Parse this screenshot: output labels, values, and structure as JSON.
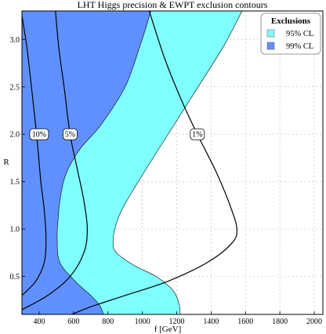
{
  "chart_data": {
    "type": "area",
    "title": "LHT Higgs precision & EWPT exclusion contours",
    "xlabel": "f [GeV]",
    "ylabel": "R",
    "xlim": [
      300,
      2050
    ],
    "ylim": [
      0.1,
      3.3
    ],
    "xticks": [
      400,
      600,
      800,
      1000,
      1200,
      1400,
      1600,
      1800,
      2000
    ],
    "yticks": [
      0.5,
      1.0,
      1.5,
      2.0,
      2.5,
      3.0
    ],
    "xtick_labels": [
      "400",
      "600",
      "800",
      "1000",
      "1200",
      "1400",
      "1600",
      "1800",
      "2000"
    ],
    "ytick_labels": [
      "0.5",
      "1.0",
      "1.5",
      "2.0",
      "2.5",
      "3.0"
    ],
    "grid": true,
    "legend": {
      "title": "Exclusions",
      "placement": "top-right",
      "entries": [
        {
          "label": "95% CL",
          "color": "#80ffff"
        },
        {
          "label": "99% CL",
          "color": "#6090ff"
        }
      ]
    },
    "regions": [
      {
        "name": "95% CL",
        "color": "#80ffff",
        "boundary": [
          [
            1220,
            0.1
          ],
          [
            1215,
            0.2
          ],
          [
            1180,
            0.35
          ],
          [
            1080,
            0.5
          ],
          [
            950,
            0.62
          ],
          [
            850,
            0.75
          ],
          [
            830,
            0.85
          ],
          [
            840,
            1.0
          ],
          [
            880,
            1.2
          ],
          [
            960,
            1.45
          ],
          [
            1080,
            1.8
          ],
          [
            1220,
            2.2
          ],
          [
            1360,
            2.6
          ],
          [
            1480,
            2.95
          ],
          [
            1580,
            3.3
          ]
        ]
      },
      {
        "name": "99% CL",
        "color": "#6090ff",
        "boundary": [
          [
            775,
            0.1
          ],
          [
            750,
            0.2
          ],
          [
            700,
            0.3
          ],
          [
            610,
            0.45
          ],
          [
            520,
            0.65
          ],
          [
            505,
            0.9
          ],
          [
            510,
            1.1
          ],
          [
            525,
            1.35
          ],
          [
            560,
            1.6
          ],
          [
            640,
            1.85
          ],
          [
            760,
            2.1
          ],
          [
            900,
            2.5
          ],
          [
            990,
            2.95
          ],
          [
            1050,
            3.3
          ]
        ]
      }
    ],
    "contours": [
      {
        "label": "10%",
        "label_at": [
          400,
          2.0
        ],
        "points": [
          [
            300,
            0.3
          ],
          [
            380,
            0.45
          ],
          [
            430,
            0.65
          ],
          [
            440,
            0.9
          ],
          [
            430,
            1.2
          ],
          [
            410,
            1.5
          ],
          [
            385,
            2.0
          ],
          [
            355,
            2.5
          ],
          [
            330,
            2.9
          ],
          [
            300,
            3.25
          ]
        ]
      },
      {
        "label": "5%",
        "label_at": [
          580,
          2.0
        ],
        "points": [
          [
            300,
            0.15
          ],
          [
            450,
            0.3
          ],
          [
            580,
            0.5
          ],
          [
            660,
            0.75
          ],
          [
            680,
            1.0
          ],
          [
            660,
            1.3
          ],
          [
            620,
            1.65
          ],
          [
            580,
            2.0
          ],
          [
            545,
            2.5
          ],
          [
            515,
            2.9
          ],
          [
            495,
            3.3
          ]
        ]
      },
      {
        "label": "1%",
        "label_at": [
          1320,
          2.0
        ],
        "points": [
          [
            590,
            0.1
          ],
          [
            700,
            0.18
          ],
          [
            900,
            0.3
          ],
          [
            1150,
            0.45
          ],
          [
            1380,
            0.65
          ],
          [
            1520,
            0.85
          ],
          [
            1550,
            1.0
          ],
          [
            1510,
            1.25
          ],
          [
            1430,
            1.6
          ],
          [
            1320,
            2.0
          ],
          [
            1230,
            2.35
          ],
          [
            1130,
            2.8
          ],
          [
            1040,
            3.3
          ]
        ]
      }
    ]
  }
}
